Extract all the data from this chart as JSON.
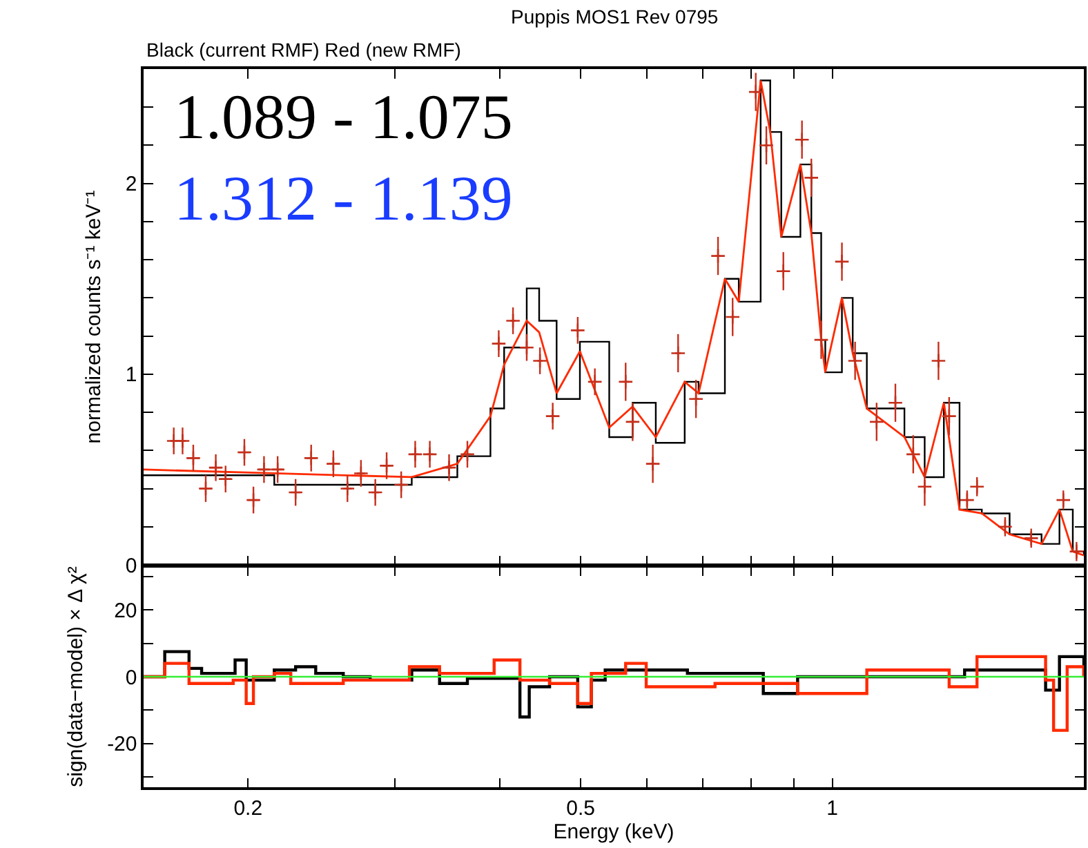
{
  "chart_data": [
    {
      "type": "line",
      "title": "Puppis MOS1 Rev 0795",
      "subtitle": "Black (current RMF) Red (new RMF)",
      "ylabel": "normalized counts s⁻¹ keV⁻¹",
      "annotations": [
        "1.089 - 1.075",
        "1.312 - 1.139"
      ],
      "log": "x",
      "tick_labels": "y",
      "xlim": [
        0.15,
        2
      ],
      "xticks": [
        0.2,
        0.5,
        1,
        {
          "value": 0.3,
          "label": null
        },
        {
          "value": 0.4,
          "label": null
        },
        {
          "value": 0.6,
          "label": null
        },
        {
          "value": 0.7,
          "label": null
        },
        {
          "value": 0.8,
          "label": null
        },
        {
          "value": 0.9,
          "label": null
        },
        {
          "value": 2,
          "label": null
        }
      ],
      "ylim": [
        0,
        2.6
      ],
      "yticks": [
        0,
        1,
        2,
        {
          "value": 0.2,
          "label": null
        },
        {
          "value": 0.4,
          "label": null
        },
        {
          "value": 0.6,
          "label": null
        },
        {
          "value": 0.8,
          "label": null
        },
        {
          "value": 1.2,
          "label": null
        },
        {
          "value": 1.4,
          "label": null
        },
        {
          "value": 1.6,
          "label": null
        },
        {
          "value": 1.8,
          "label": null
        },
        {
          "value": 2.2,
          "label": null
        },
        {
          "value": 2.4,
          "label": null
        }
      ],
      "x": [
        0.15,
        0.215,
        0.314,
        0.356,
        0.39,
        0.405,
        0.431,
        0.446,
        0.468,
        0.499,
        0.541,
        0.577,
        0.615,
        0.666,
        0.692,
        0.744,
        0.773,
        0.821,
        0.843,
        0.869,
        0.916,
        0.944,
        0.97,
        0.981,
        1.027,
        1.058,
        1.1,
        1.22,
        1.29,
        1.36,
        1.42,
        1.51,
        1.63,
        1.78,
        1.87,
        1.94,
        2.0
      ],
      "series": [
        {
          "type": "step",
          "color": "#000000",
          "values": [
            0.47,
            0.42,
            0.46,
            0.57,
            0.82,
            1.14,
            1.45,
            1.28,
            0.87,
            1.17,
            0.67,
            0.85,
            0.64,
            0.96,
            0.9,
            1.5,
            1.38,
            2.54,
            2.27,
            1.72,
            2.1,
            1.74,
            1.18,
            1.01,
            1.4,
            1.11,
            0.82,
            0.67,
            0.46,
            0.85,
            0.29,
            0.27,
            0.16,
            0.11,
            0.29,
            0.07,
            0.05
          ]
        },
        {
          "type": "line",
          "color": "#ff2a00",
          "values": [
            0.5,
            0.48,
            0.46,
            0.53,
            0.78,
            1.05,
            1.28,
            1.22,
            0.9,
            1.12,
            0.72,
            0.83,
            0.67,
            0.96,
            0.9,
            1.5,
            1.38,
            2.54,
            2.27,
            1.72,
            2.1,
            1.74,
            1.18,
            1.01,
            1.4,
            1.11,
            0.82,
            0.67,
            0.46,
            0.85,
            0.29,
            0.27,
            0.16,
            0.11,
            0.29,
            0.07,
            0.05
          ]
        },
        {
          "type": "scatter",
          "color": "#c4301c",
          "marker": "cross",
          "x": [
            0.163,
            0.167,
            0.172,
            0.178,
            0.183,
            0.188,
            0.198,
            0.203,
            0.209,
            0.217,
            0.228,
            0.238,
            0.253,
            0.263,
            0.273,
            0.284,
            0.293,
            0.305,
            0.317,
            0.33,
            0.348,
            0.366,
            0.399,
            0.415,
            0.431,
            0.447,
            0.463,
            0.496,
            0.52,
            0.566,
            0.577,
            0.61,
            0.654,
            0.687,
            0.73,
            0.76,
            0.81,
            0.834,
            0.874,
            0.92,
            0.944,
            0.97,
            1.027,
            1.065,
            1.13,
            1.19,
            1.25,
            1.29,
            1.34,
            1.38,
            1.45,
            1.49,
            1.61,
            1.73,
            1.89,
            1.96
          ],
          "values": [
            0.65,
            0.65,
            0.56,
            0.4,
            0.51,
            0.45,
            0.59,
            0.34,
            0.5,
            0.5,
            0.38,
            0.56,
            0.53,
            0.4,
            0.48,
            0.38,
            0.52,
            0.42,
            0.58,
            0.58,
            0.51,
            0.58,
            1.16,
            1.28,
            1.14,
            1.07,
            0.78,
            1.23,
            0.96,
            0.96,
            0.75,
            0.53,
            1.11,
            0.87,
            1.62,
            1.3,
            2.48,
            2.2,
            1.54,
            2.23,
            2.03,
            1.18,
            1.59,
            1.07,
            0.75,
            0.85,
            0.58,
            0.41,
            1.07,
            0.78,
            0.34,
            0.41,
            0.2,
            0.14,
            0.34,
            0.07
          ],
          "errors": [
            0.07,
            0.07,
            0.07,
            0.07,
            0.07,
            0.07,
            0.07,
            0.07,
            0.07,
            0.07,
            0.07,
            0.07,
            0.07,
            0.07,
            0.07,
            0.07,
            0.07,
            0.07,
            0.07,
            0.07,
            0.07,
            0.07,
            0.07,
            0.07,
            0.07,
            0.07,
            0.07,
            0.07,
            0.07,
            0.1,
            0.1,
            0.1,
            0.1,
            0.1,
            0.1,
            0.1,
            0.1,
            0.1,
            0.1,
            0.1,
            0.1,
            0.1,
            0.1,
            0.1,
            0.1,
            0.1,
            0.1,
            0.1,
            0.1,
            0.1,
            0.05,
            0.05,
            0.05,
            0.05,
            0.05,
            0.05
          ],
          "xerrors": [
            0.0015,
            0.0015,
            0.003,
            0.003,
            0.003,
            0.003,
            0.003,
            0.003,
            0.003,
            0.003,
            0.003,
            0.003,
            0.003,
            0.003,
            0.003,
            0.003,
            0.003,
            0.003,
            0.003,
            0.003,
            0.003,
            0.003,
            0.003,
            0.003,
            0.003,
            0.003,
            0.003,
            0.003,
            0.003,
            0.005,
            0.005,
            0.005,
            0.005,
            0.005,
            0.005,
            0.005,
            0.005,
            0.005,
            0.005,
            0.005,
            0.005,
            0.005,
            0.005,
            0.005,
            0.005,
            0.005,
            0.005,
            0.005,
            0.005,
            0.005,
            0.005,
            0.005,
            0.005,
            0.005,
            0.005,
            0.005
          ]
        }
      ]
    },
    {
      "type": "step",
      "xlabel": "Energy (keV)",
      "ylabel": "sign(data−model) × Δ χ²",
      "log": "x",
      "xlim": [
        0.15,
        2
      ],
      "xticks": [
        0.2,
        0.5,
        1,
        {
          "value": 0.3,
          "label": null
        },
        {
          "value": 0.4,
          "label": null
        },
        {
          "value": 0.6,
          "label": null
        },
        {
          "value": 0.7,
          "label": null
        },
        {
          "value": 0.8,
          "label": null
        },
        {
          "value": 0.9,
          "label": null
        },
        {
          "value": 2,
          "label": null
        }
      ],
      "ylim": [
        -33,
        33
      ],
      "yticks": [
        -20,
        0,
        20,
        {
          "value": -30,
          "label": null
        },
        {
          "value": -10,
          "label": null
        },
        {
          "value": 10,
          "label": null
        },
        {
          "value": 30,
          "label": null
        }
      ],
      "ref_lines": [
        {
          "axis": "y",
          "value": 0,
          "label": null,
          "color": "#33ee33"
        }
      ],
      "series": [
        {
          "color": "#000000",
          "x": [
            0.15,
            0.159,
            0.17,
            0.176,
            0.193,
            0.199,
            0.215,
            0.228,
            0.241,
            0.26,
            0.28,
            0.314,
            0.339,
            0.366,
            0.423,
            0.434,
            0.459,
            0.496,
            0.515,
            0.535,
            0.599,
            0.671,
            0.827,
            0.909,
            1.02,
            1.44,
            1.8,
            1.87,
            2.0
          ],
          "values": [
            0,
            7.5,
            2.5,
            1,
            5,
            -1,
            2,
            3,
            1,
            0,
            -1,
            2,
            -2,
            -0.5,
            -12,
            -3,
            0,
            -9,
            -1,
            2,
            2,
            1,
            -5,
            0,
            0,
            2,
            -4,
            6,
            0
          ]
        },
        {
          "color": "#ff2a00",
          "x": [
            0.15,
            0.159,
            0.17,
            0.192,
            0.199,
            0.203,
            0.215,
            0.225,
            0.26,
            0.312,
            0.339,
            0.394,
            0.423,
            0.459,
            0.496,
            0.515,
            0.566,
            0.599,
            0.724,
            0.909,
            1.1,
            1.38,
            1.49,
            1.8,
            1.84,
            1.91,
            2.0
          ],
          "values": [
            0,
            4,
            -2,
            -1,
            -8,
            0,
            1,
            -2,
            -1,
            3,
            1,
            5,
            -1,
            -2,
            -8,
            1,
            4,
            -3,
            -2,
            -5,
            2,
            -3,
            6,
            -1,
            -16,
            3,
            0
          ]
        }
      ]
    }
  ]
}
